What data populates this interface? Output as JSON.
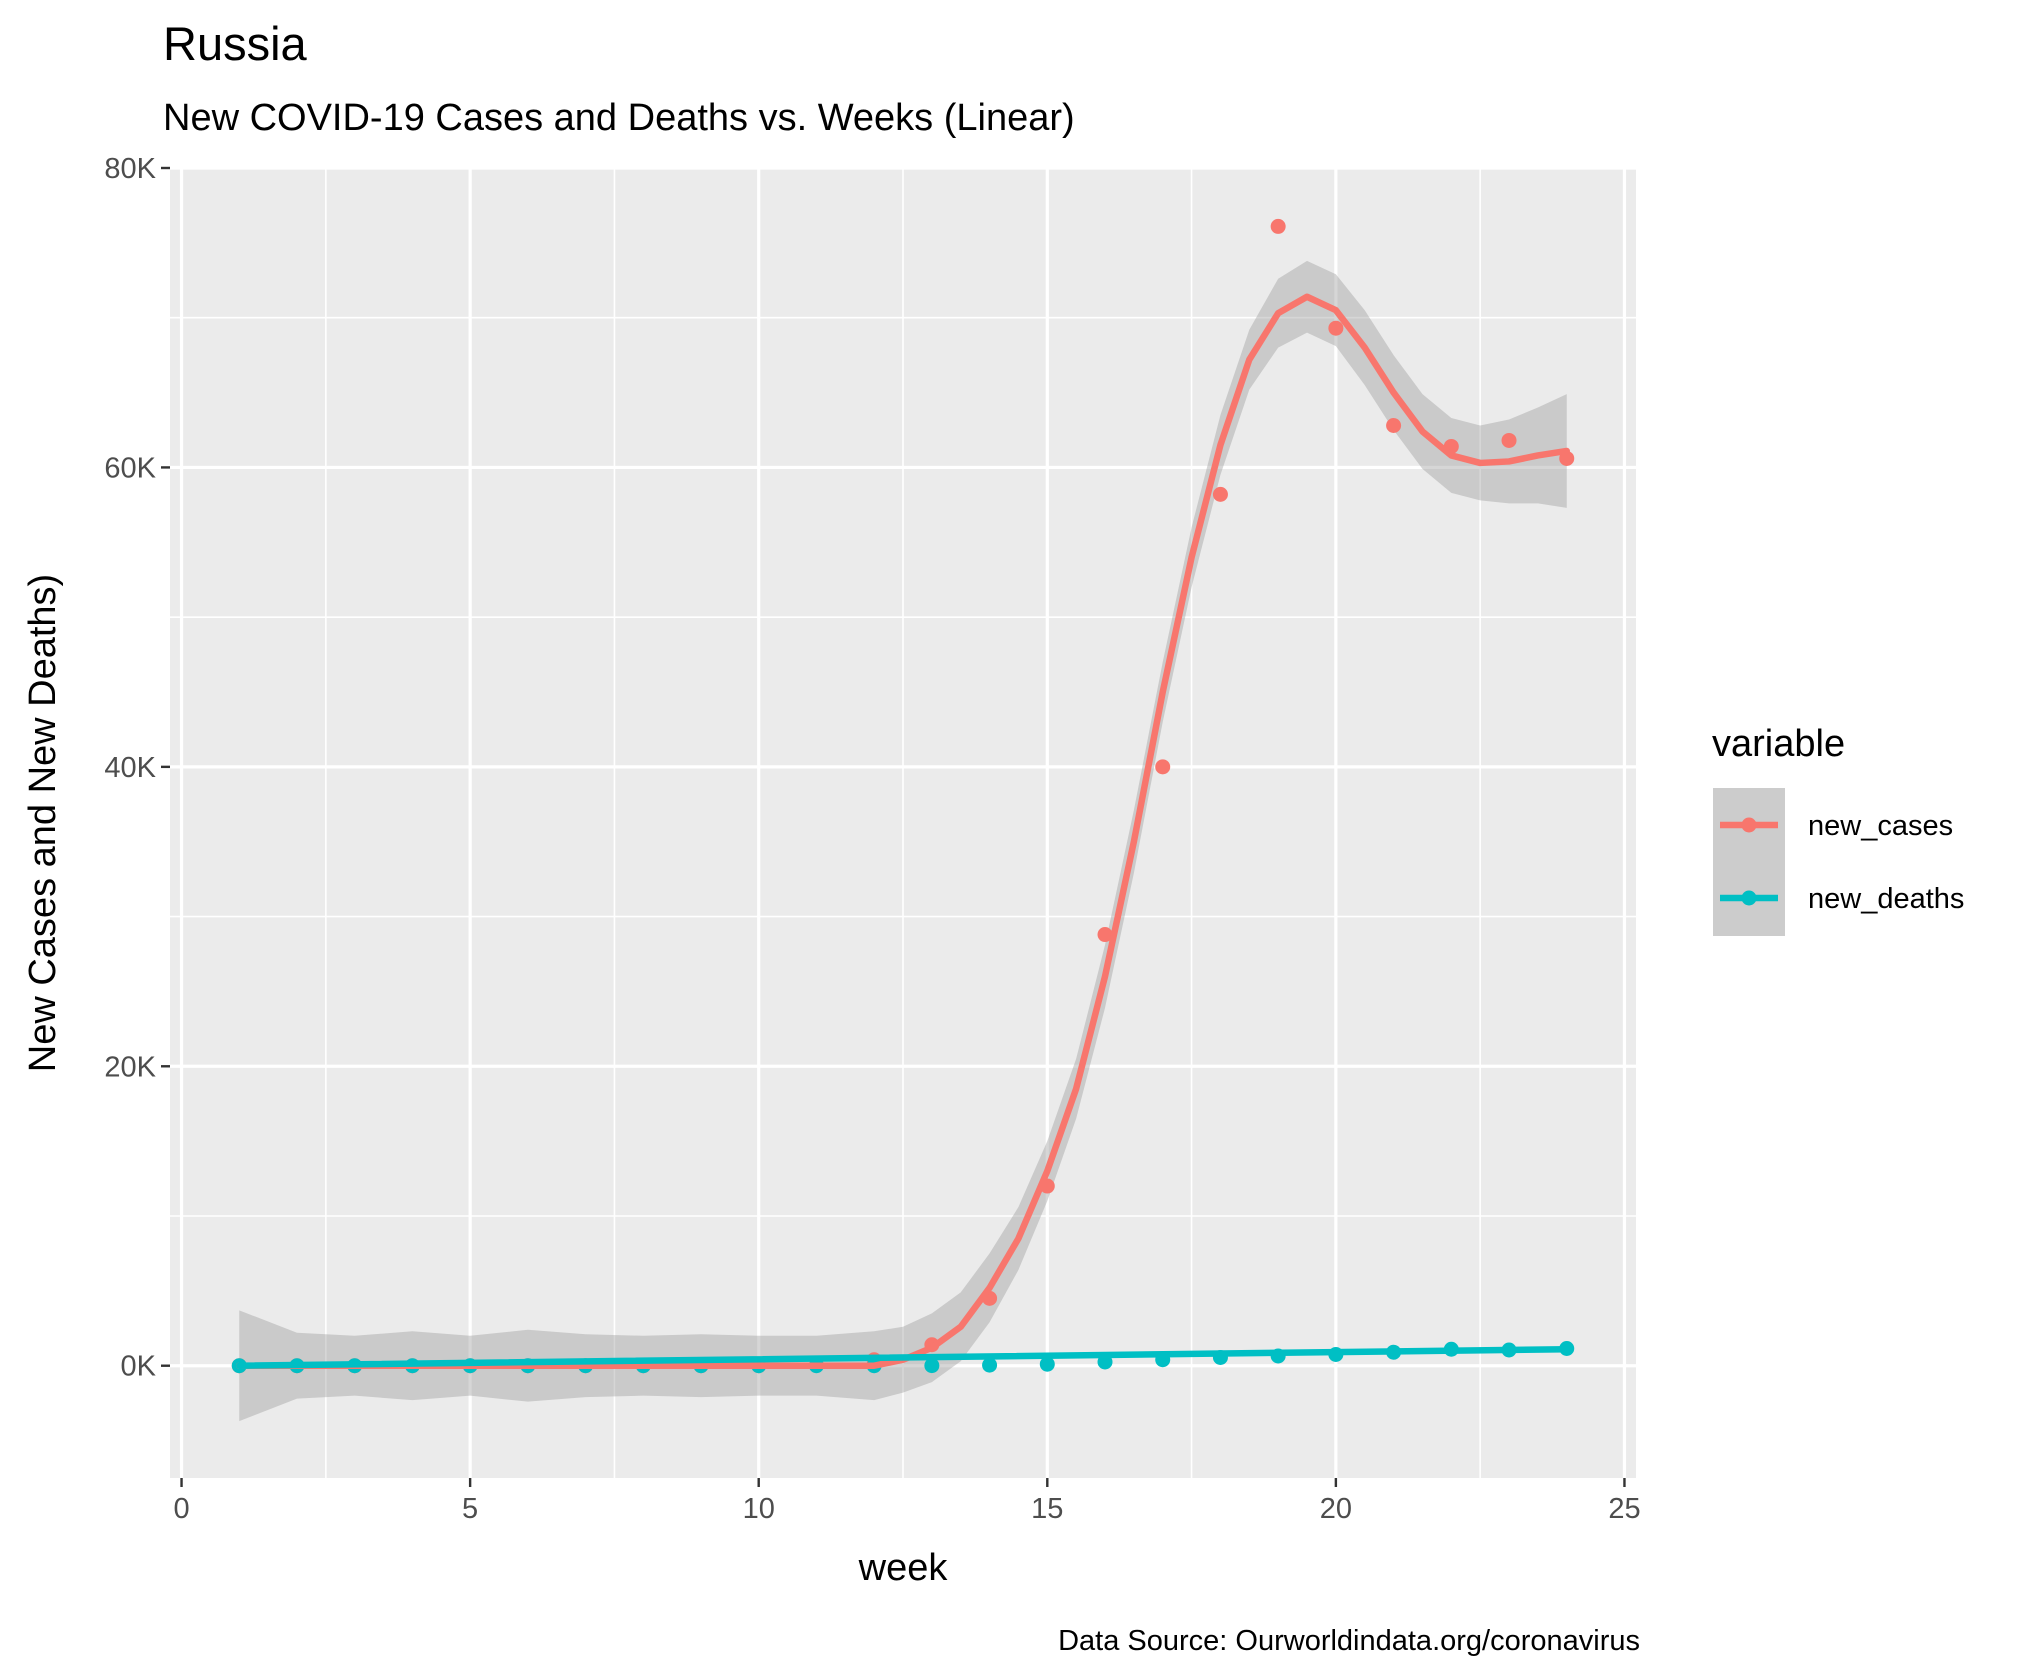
{
  "title": "Russia",
  "subtitle": "New COVID-19 Cases and Deaths vs. Weeks (Linear)",
  "caption": "Data Source: Ourworldindata.org/coronavirus",
  "chart_data": {
    "type": "scatter",
    "title": "Russia",
    "subtitle": "New COVID-19 Cases and Deaths vs. Weeks (Linear)",
    "xlabel": "week",
    "ylabel": "New Cases and New Deaths)",
    "xlim": [
      -0.2,
      25.2
    ],
    "ylim": [
      -7500,
      80000
    ],
    "x_ticks": [
      0,
      5,
      10,
      15,
      20,
      25
    ],
    "x_tick_labels": [
      "0",
      "5",
      "10",
      "15",
      "20",
      "25"
    ],
    "y_ticks": [
      0,
      20000,
      40000,
      60000,
      80000
    ],
    "y_tick_labels": [
      "0K",
      "20K",
      "40K",
      "60K",
      "80K"
    ],
    "grid": true,
    "legend": {
      "title": "variable",
      "position": "right"
    },
    "smoothing": "loess fit with confidence band",
    "x": [
      1,
      2,
      3,
      4,
      5,
      6,
      7,
      8,
      9,
      10,
      11,
      12,
      13,
      14,
      15,
      16,
      17,
      18,
      19,
      20,
      21,
      22,
      23,
      24
    ],
    "series": [
      {
        "name": "new_cases",
        "color": "#F8766D",
        "values": [
          0,
          0,
          0,
          0,
          0,
          0,
          0,
          0,
          0,
          0,
          50,
          400,
          1400,
          4500,
          12000,
          28800,
          40000,
          58200,
          76100,
          69300,
          62800,
          61400,
          61800,
          60600
        ]
      },
      {
        "name": "new_deaths",
        "color": "#00BFC4",
        "values": [
          0,
          0,
          0,
          0,
          0,
          0,
          0,
          0,
          0,
          0,
          0,
          0,
          10,
          40,
          100,
          250,
          400,
          550,
          650,
          750,
          900,
          1100,
          1050,
          1150
        ]
      }
    ],
    "fit_lines": [
      {
        "name": "new_cases",
        "x": [
          1,
          2,
          3,
          4,
          5,
          6,
          7,
          8,
          9,
          10,
          11,
          12,
          12.5,
          13,
          13.5,
          14,
          14.5,
          15,
          15.5,
          16,
          16.5,
          17,
          17.5,
          18,
          18.5,
          19,
          19.5,
          20,
          20.5,
          21,
          21.5,
          22,
          22.5,
          23,
          23.5,
          24
        ],
        "y": [
          0,
          0,
          0,
          0,
          0,
          0,
          0,
          0,
          0,
          0,
          0,
          0,
          400,
          1200,
          2600,
          5200,
          8500,
          13000,
          18500,
          26000,
          35000,
          45000,
          54000,
          61500,
          67200,
          70300,
          71400,
          70500,
          68000,
          65000,
          62400,
          60800,
          60300,
          60400,
          60800,
          61100
        ],
        "band_halfwidth": [
          3700,
          2200,
          2000,
          2300,
          2000,
          2400,
          2100,
          2000,
          2100,
          2000,
          2000,
          2300,
          2200,
          2300,
          2300,
          2300,
          2100,
          2000,
          2000,
          2100,
          2100,
          2000,
          2000,
          2000,
          2000,
          2300,
          2400,
          2400,
          2500,
          2500,
          2500,
          2500,
          2500,
          2800,
          3200,
          3800
        ]
      },
      {
        "name": "new_deaths",
        "x": [
          1,
          24
        ],
        "y": [
          0,
          1100
        ]
      }
    ]
  }
}
